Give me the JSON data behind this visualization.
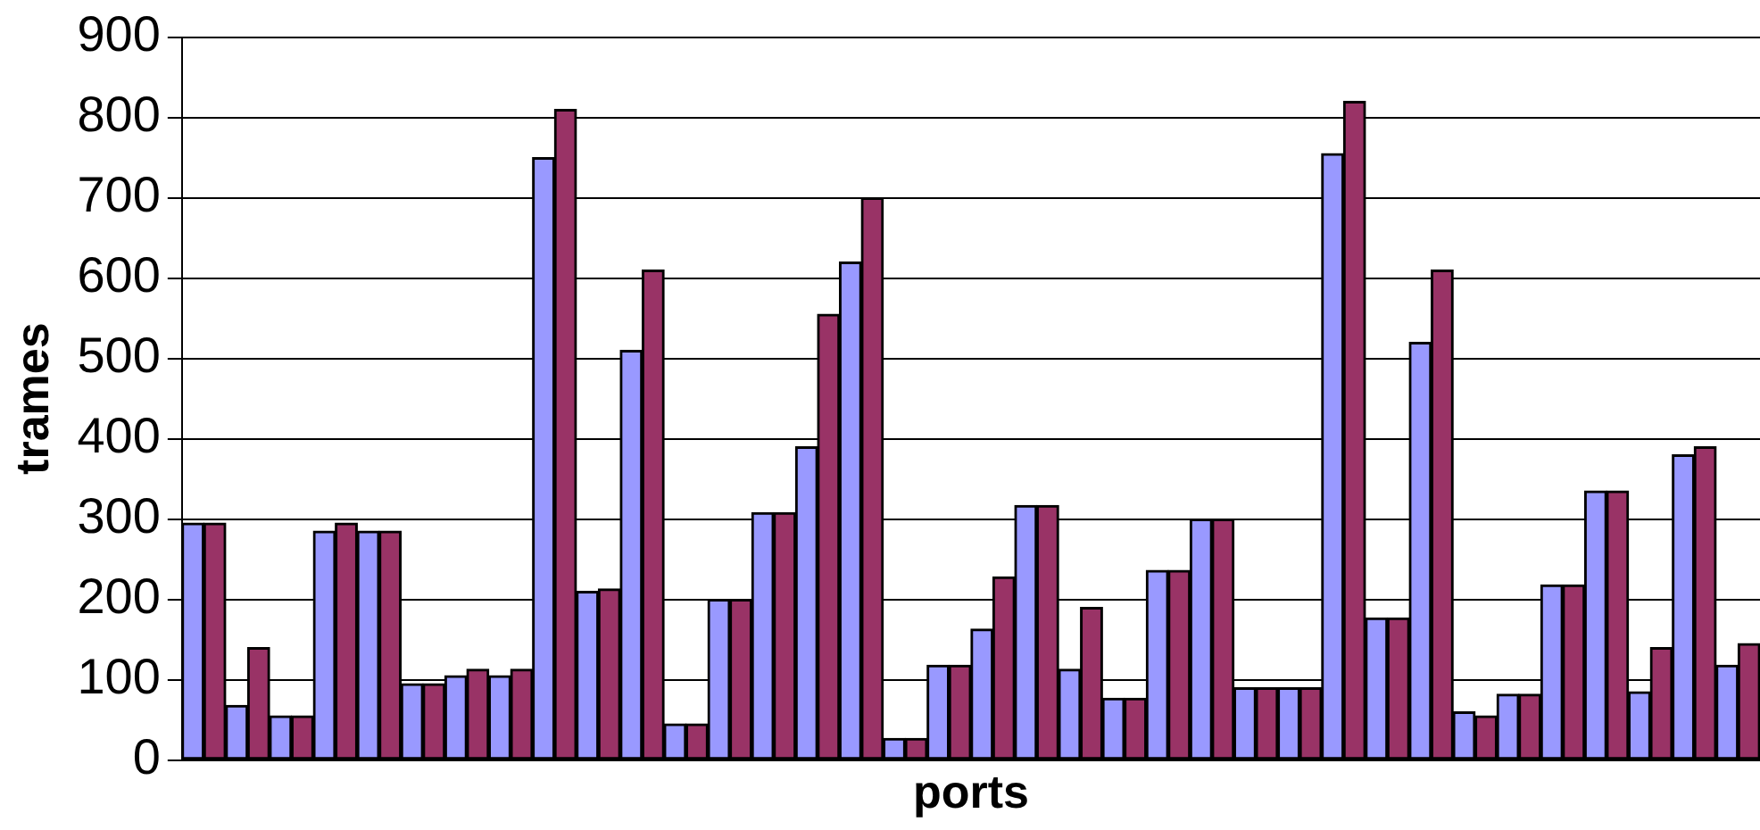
{
  "chart_data": {
    "type": "bar",
    "xlabel": "ports",
    "ylabel": "trames",
    "categories": [
      null,
      null,
      null,
      null,
      null,
      null,
      null,
      null,
      null,
      null,
      null,
      null,
      null,
      null,
      null,
      null,
      null,
      null,
      null,
      null,
      null,
      null,
      null,
      null,
      null,
      null,
      null,
      null,
      null,
      null,
      null,
      null,
      null,
      null,
      null,
      null
    ],
    "series": [
      {
        "color": "#9999ff",
        "values": [
          295,
          68,
          55,
          285,
          285,
          95,
          105,
          105,
          750,
          210,
          510,
          45,
          200,
          308,
          390,
          620,
          27,
          118,
          163,
          317,
          113,
          77,
          236,
          300,
          90,
          90,
          755,
          177,
          520,
          60,
          82,
          218,
          335,
          85,
          380,
          118
        ]
      },
      {
        "color": "#993366",
        "values": [
          295,
          140,
          55,
          295,
          285,
          95,
          113,
          113,
          810,
          213,
          610,
          45,
          200,
          308,
          555,
          700,
          27,
          118,
          228,
          317,
          190,
          77,
          236,
          300,
          90,
          90,
          820,
          177,
          610,
          55,
          82,
          218,
          335,
          140,
          390,
          145
        ]
      }
    ],
    "ylim": [
      0,
      900
    ],
    "yticks": [
      0,
      100,
      200,
      300,
      400,
      500,
      600,
      700,
      800,
      900
    ],
    "grid": "y",
    "tick_labels": "y"
  }
}
